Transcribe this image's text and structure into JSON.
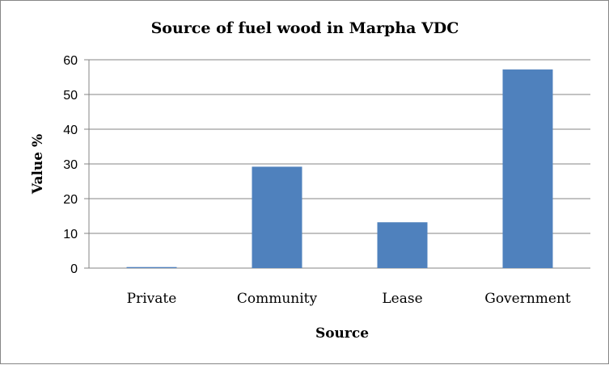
{
  "chart_data": {
    "type": "bar",
    "title": "Source of fuel wood in Marpha VDC",
    "xlabel": "Source",
    "ylabel": "Value %",
    "categories": [
      "Private",
      "Community",
      "Lease",
      "Government"
    ],
    "values": [
      0.3,
      29.2,
      13.2,
      57.2
    ],
    "ylim": [
      0,
      60
    ],
    "yticks": [
      "0",
      "10",
      "20",
      "30",
      "40",
      "50",
      "60"
    ],
    "grid": true,
    "legend": "none",
    "bar_color": "#4F81BD"
  }
}
